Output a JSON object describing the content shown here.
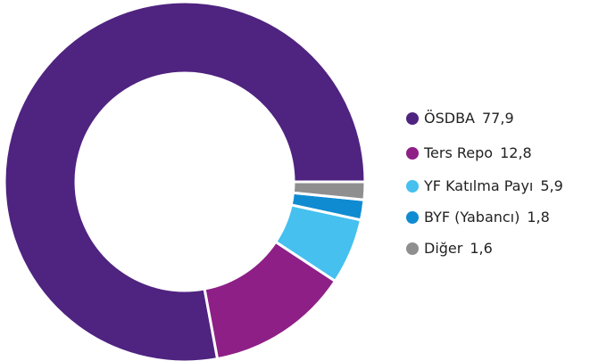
{
  "chart_data": {
    "type": "donut",
    "series": [
      {
        "name": "ÖSDBA",
        "color": "#4f2380",
        "values": [
          77.9
        ],
        "value_labels": [
          "77,9"
        ]
      },
      {
        "name": "Ters Repo",
        "color": "#8e1f86",
        "values": [
          12.8
        ],
        "value_labels": [
          "12,8"
        ]
      },
      {
        "name": "YF Katılma Payı",
        "color": "#45c0ef",
        "values": [
          5.9
        ],
        "value_labels": [
          "5,9"
        ]
      },
      {
        "name": "BYF (Yabancı)",
        "color": "#0f8bd1",
        "values": [
          1.8
        ],
        "value_labels": [
          "1,8"
        ]
      },
      {
        "name": "Diğer",
        "color": "#8f8f8f",
        "values": [
          1.6
        ],
        "value_labels": [
          "1,6"
        ]
      }
    ],
    "legend": "right"
  }
}
